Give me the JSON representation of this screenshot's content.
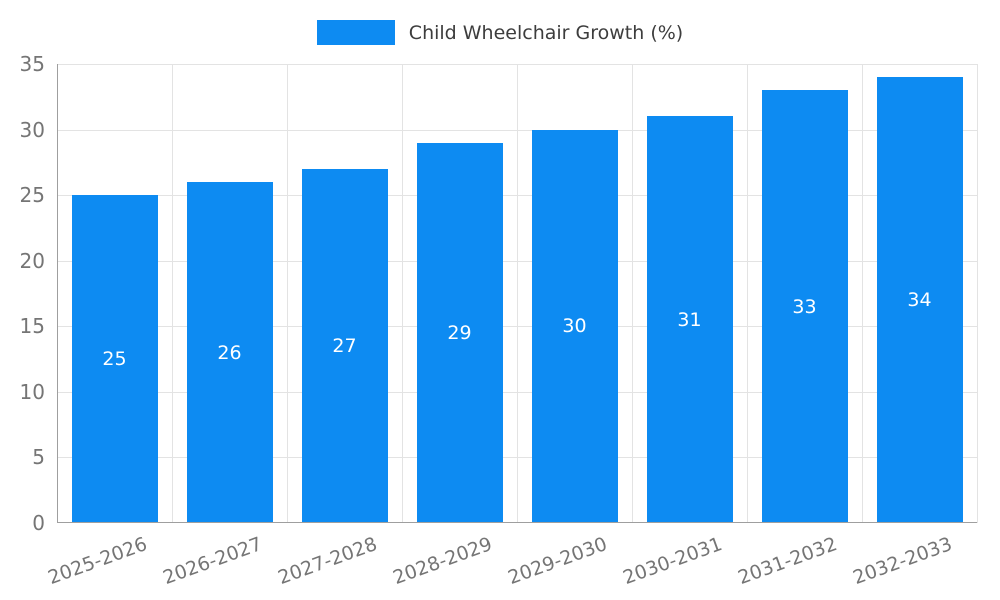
{
  "chart_data": {
    "type": "bar",
    "title": "Child Wheelchair Growth (%)",
    "categories": [
      "2025-2026",
      "2026-2027",
      "2027-2028",
      "2028-2029",
      "2029-2030",
      "2030-2031",
      "2031-2032",
      "2032-2033"
    ],
    "values": [
      25,
      26,
      27,
      29,
      30,
      31,
      33,
      34
    ],
    "xlabel": "",
    "ylabel": "",
    "ylim": [
      0,
      35
    ],
    "ytick_step": 5,
    "yticks": [
      0,
      5,
      10,
      15,
      20,
      25,
      30,
      35
    ],
    "grid": true,
    "legend_position": "top-center",
    "value_labels": "inside-center-white",
    "colors": {
      "bar": "#0d8bf2",
      "grid": "#e3e3e3",
      "axis": "#9f9f9f",
      "tick_label": "#757575",
      "title": "#3d3d3d",
      "value_label": "#ffffff",
      "background": "#ffffff"
    }
  }
}
